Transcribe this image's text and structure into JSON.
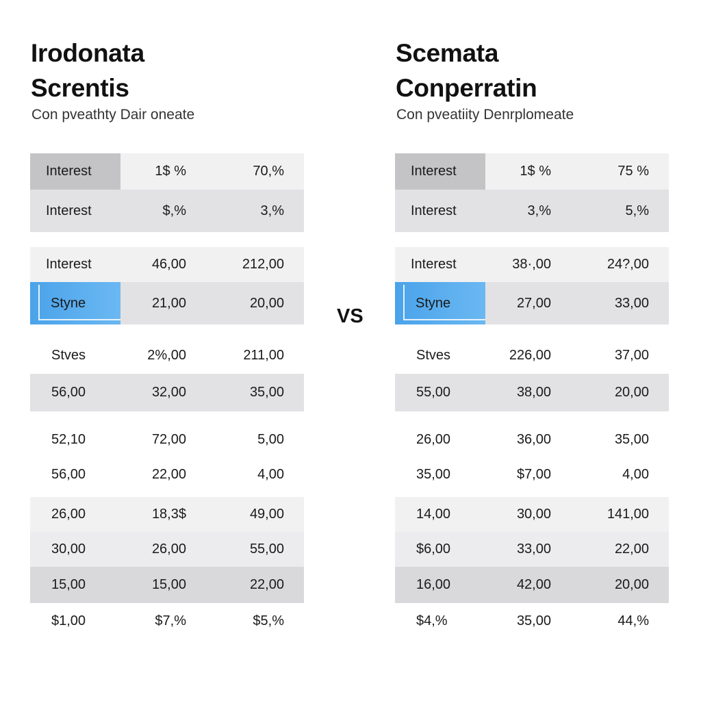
{
  "left": {
    "title_line1": "Irodonata",
    "title_line2": "Screntis",
    "subtitle": "Con pveathty Dair oneate",
    "rows": [
      [
        "Interest",
        "1$ %",
        "70,%"
      ],
      [
        "Interest",
        "$,%",
        "3,%"
      ],
      [
        "Interest",
        "46,00",
        "212,00"
      ],
      [
        "Styne",
        "21,00",
        "20,00"
      ],
      [
        "Stves",
        "2%,00",
        "211,00"
      ],
      [
        "56,00",
        "32,00",
        "35,00"
      ],
      [
        "52,10",
        "72,00",
        "5,00"
      ],
      [
        "56,00",
        "22,00",
        "4,00"
      ],
      [
        "26,00",
        "18,3$",
        "49,00"
      ],
      [
        "30,00",
        "26,00",
        "55,00"
      ],
      [
        "15,00",
        "15,00",
        "22,00"
      ],
      [
        "$1,00",
        "$7,%",
        "$5,%"
      ]
    ]
  },
  "vs_label": "VS",
  "right": {
    "title_line1": "Scemata",
    "title_line2": "Conperratin",
    "subtitle": "Con pveatiity Denrplomeate",
    "rows": [
      [
        "Interest",
        "1$ %",
        "75 %"
      ],
      [
        "Interest",
        "3,%",
        "5,%"
      ],
      [
        "Interest",
        "38·,00",
        "24?,00"
      ],
      [
        "Styne",
        "27,00",
        "33,00"
      ],
      [
        "Stves",
        "226,00",
        "37,00"
      ],
      [
        "55,00",
        "38,00",
        "20,00"
      ],
      [
        "26,00",
        "36,00",
        "35,00"
      ],
      [
        "35,00",
        "$7,00",
        "4,00"
      ],
      [
        "14,00",
        "30,00",
        "141,00"
      ],
      [
        "$6,00",
        "33,00",
        "22,00"
      ],
      [
        "16,00",
        "42,00",
        "20,00"
      ],
      [
        "$4,%",
        "35,00",
        "44,%"
      ]
    ]
  }
}
